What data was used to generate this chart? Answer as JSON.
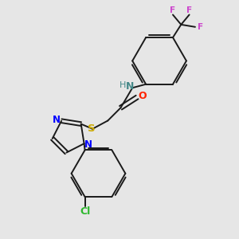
{
  "bg_color": "#e6e6e6",
  "bond_color": "#1a1a1a",
  "N_color": "#0000ff",
  "O_color": "#ff2200",
  "S_color": "#ccaa00",
  "Cl_color": "#2db82d",
  "F_color": "#cc44cc",
  "NH_color": "#448888",
  "figsize": [
    3.0,
    3.0
  ],
  "dpi": 100,
  "xlim": [
    0,
    10
  ],
  "ylim": [
    0,
    10
  ]
}
